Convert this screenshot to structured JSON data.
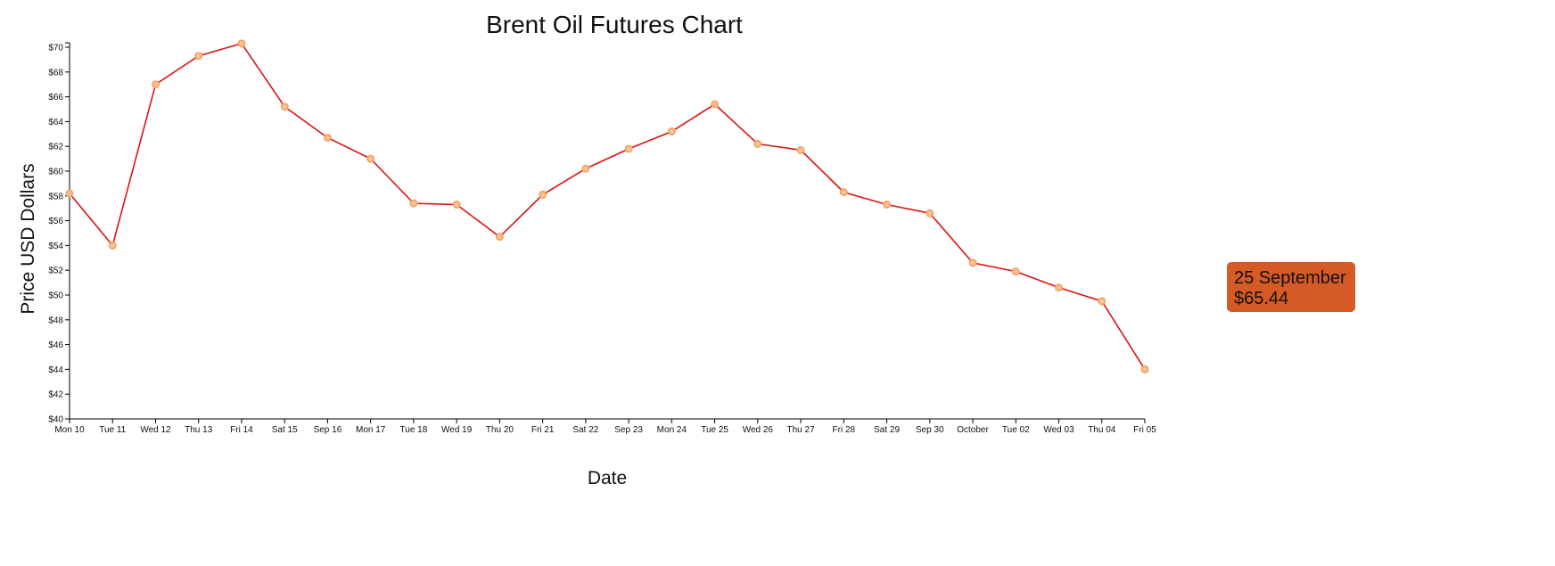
{
  "chart_data": {
    "type": "line",
    "title": "Brent Oil Futures Chart",
    "xlabel": "Date",
    "ylabel": "Price USD Dollars",
    "ylim": [
      40,
      70
    ],
    "yticks": [
      "$40",
      "$42",
      "$44",
      "$46",
      "$48",
      "$50",
      "$52",
      "$54",
      "$56",
      "$58",
      "$60",
      "$62",
      "$64",
      "$66",
      "$68",
      "$70"
    ],
    "categories": [
      "Mon 10",
      "Tue 11",
      "Wed 12",
      "Thu 13",
      "Fri 14",
      "Sat 15",
      "Sep 16",
      "Mon 17",
      "Tue 18",
      "Wed 19",
      "Thu 20",
      "Fri 21",
      "Sat 22",
      "Sep 23",
      "Mon 24",
      "Tue 25",
      "Wed 26",
      "Thu 27",
      "Fri 28",
      "Sat 29",
      "Sep 30",
      "October",
      "Tue 02",
      "Wed 03",
      "Thu 04",
      "Fri 05"
    ],
    "values": [
      58.2,
      54.0,
      67.0,
      69.3,
      70.3,
      65.2,
      62.7,
      61.0,
      57.4,
      57.3,
      54.7,
      58.1,
      60.2,
      61.8,
      63.2,
      65.4,
      62.2,
      61.7,
      58.3,
      57.3,
      56.6,
      52.6,
      51.9,
      50.6,
      49.5,
      44.0
    ],
    "grid": false,
    "line_color": "#dd1111",
    "marker_color": "#f4a460"
  },
  "tooltip": {
    "date": "25 September",
    "price": "$65.44",
    "background": "#d65a26"
  }
}
